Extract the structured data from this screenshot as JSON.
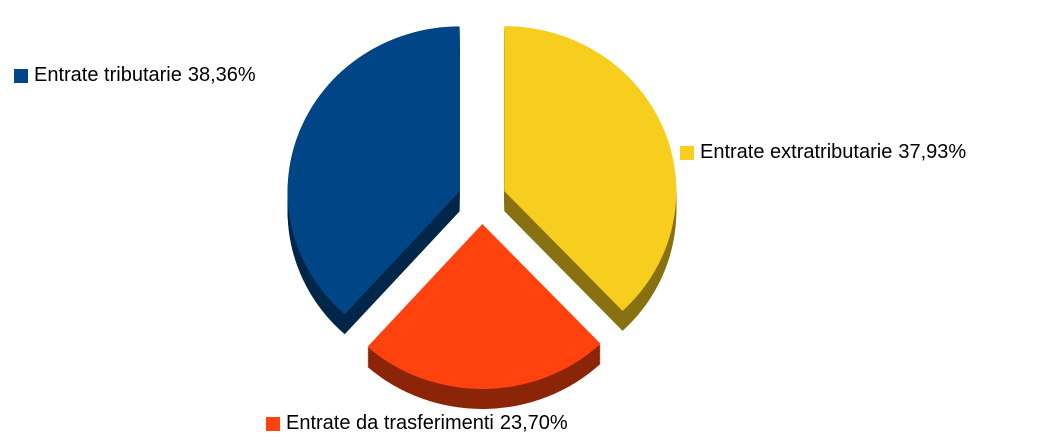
{
  "chart_data": {
    "type": "pie",
    "categories": [
      "Entrate extratributarie",
      "Entrate da trasferimenti",
      "Entrate tributarie"
    ],
    "values": [
      37.93,
      23.7,
      38.36
    ],
    "value_labels": [
      "37,93%",
      "23,70%",
      "38,36%"
    ],
    "colors": [
      "#f7cd1e",
      "#ff420e",
      "#004586"
    ]
  }
}
